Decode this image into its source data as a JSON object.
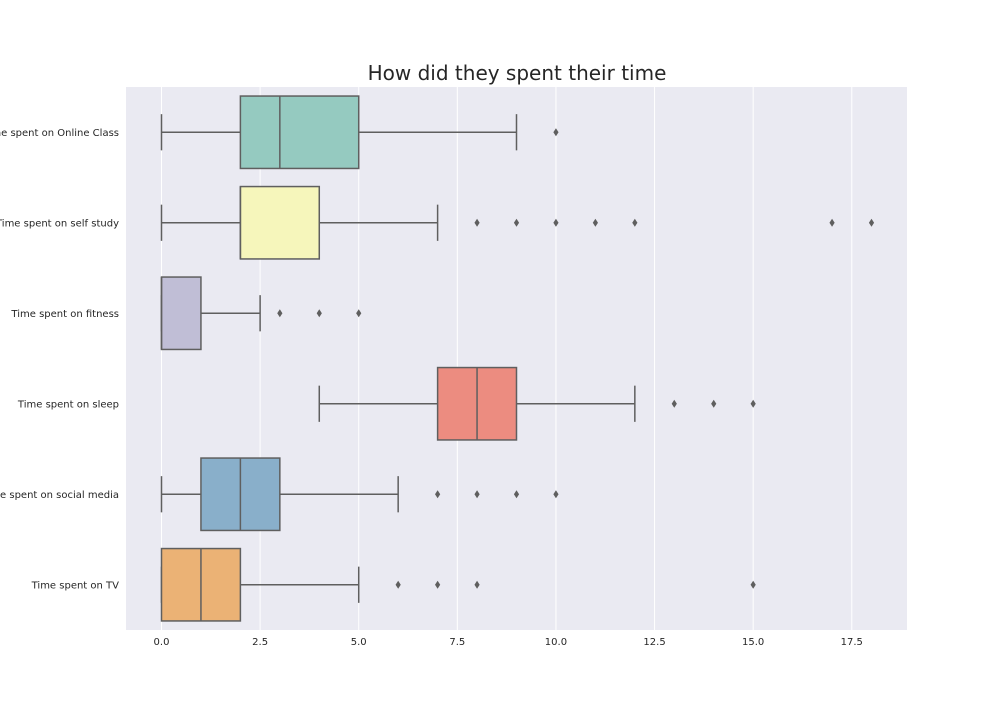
{
  "chart_data": {
    "type": "boxplot",
    "orientation": "horizontal",
    "title": "How did they spent their time",
    "xlabel": "",
    "ylabel": "",
    "xlim": [
      -0.9,
      18.9
    ],
    "xticks": [
      0.0,
      2.5,
      5.0,
      7.5,
      10.0,
      12.5,
      15.0,
      17.5
    ],
    "xtick_labels": [
      "0.0",
      "2.5",
      "5.0",
      "7.5",
      "10.0",
      "12.5",
      "15.0",
      "17.5"
    ],
    "grid": true,
    "series": [
      {
        "name": "Time spent on Online Class",
        "color": "#95cac0",
        "whisker_low": 0,
        "q1": 2,
        "median": 3,
        "q3": 5,
        "whisker_high": 9,
        "outliers": [
          10
        ]
      },
      {
        "name": "Time spent on self study",
        "color": "#f6f6bb",
        "whisker_low": 0,
        "q1": 2,
        "median": 2,
        "q3": 4,
        "whisker_high": 7,
        "outliers": [
          8,
          9,
          10,
          11,
          12,
          17,
          18
        ]
      },
      {
        "name": "Time spent on fitness",
        "color": "#c0bed6",
        "whisker_low": 0,
        "q1": 0,
        "median": 0,
        "q3": 1,
        "whisker_high": 2.5,
        "outliers": [
          3,
          4,
          5
        ]
      },
      {
        "name": "Time spent on sleep",
        "color": "#ec8c80",
        "whisker_low": 4,
        "q1": 7,
        "median": 8,
        "q3": 9,
        "whisker_high": 12,
        "outliers": [
          13,
          14,
          15
        ]
      },
      {
        "name": "Time spent on social media",
        "color": "#89afca",
        "whisker_low": 0,
        "q1": 1,
        "median": 2,
        "q3": 3,
        "whisker_high": 6,
        "outliers": [
          7,
          8,
          9,
          10
        ]
      },
      {
        "name": "Time spent on TV",
        "color": "#ebb275",
        "whisker_low": 0,
        "q1": 0,
        "median": 1,
        "q3": 2,
        "whisker_high": 5,
        "outliers": [
          6,
          7,
          8,
          15
        ]
      }
    ]
  }
}
